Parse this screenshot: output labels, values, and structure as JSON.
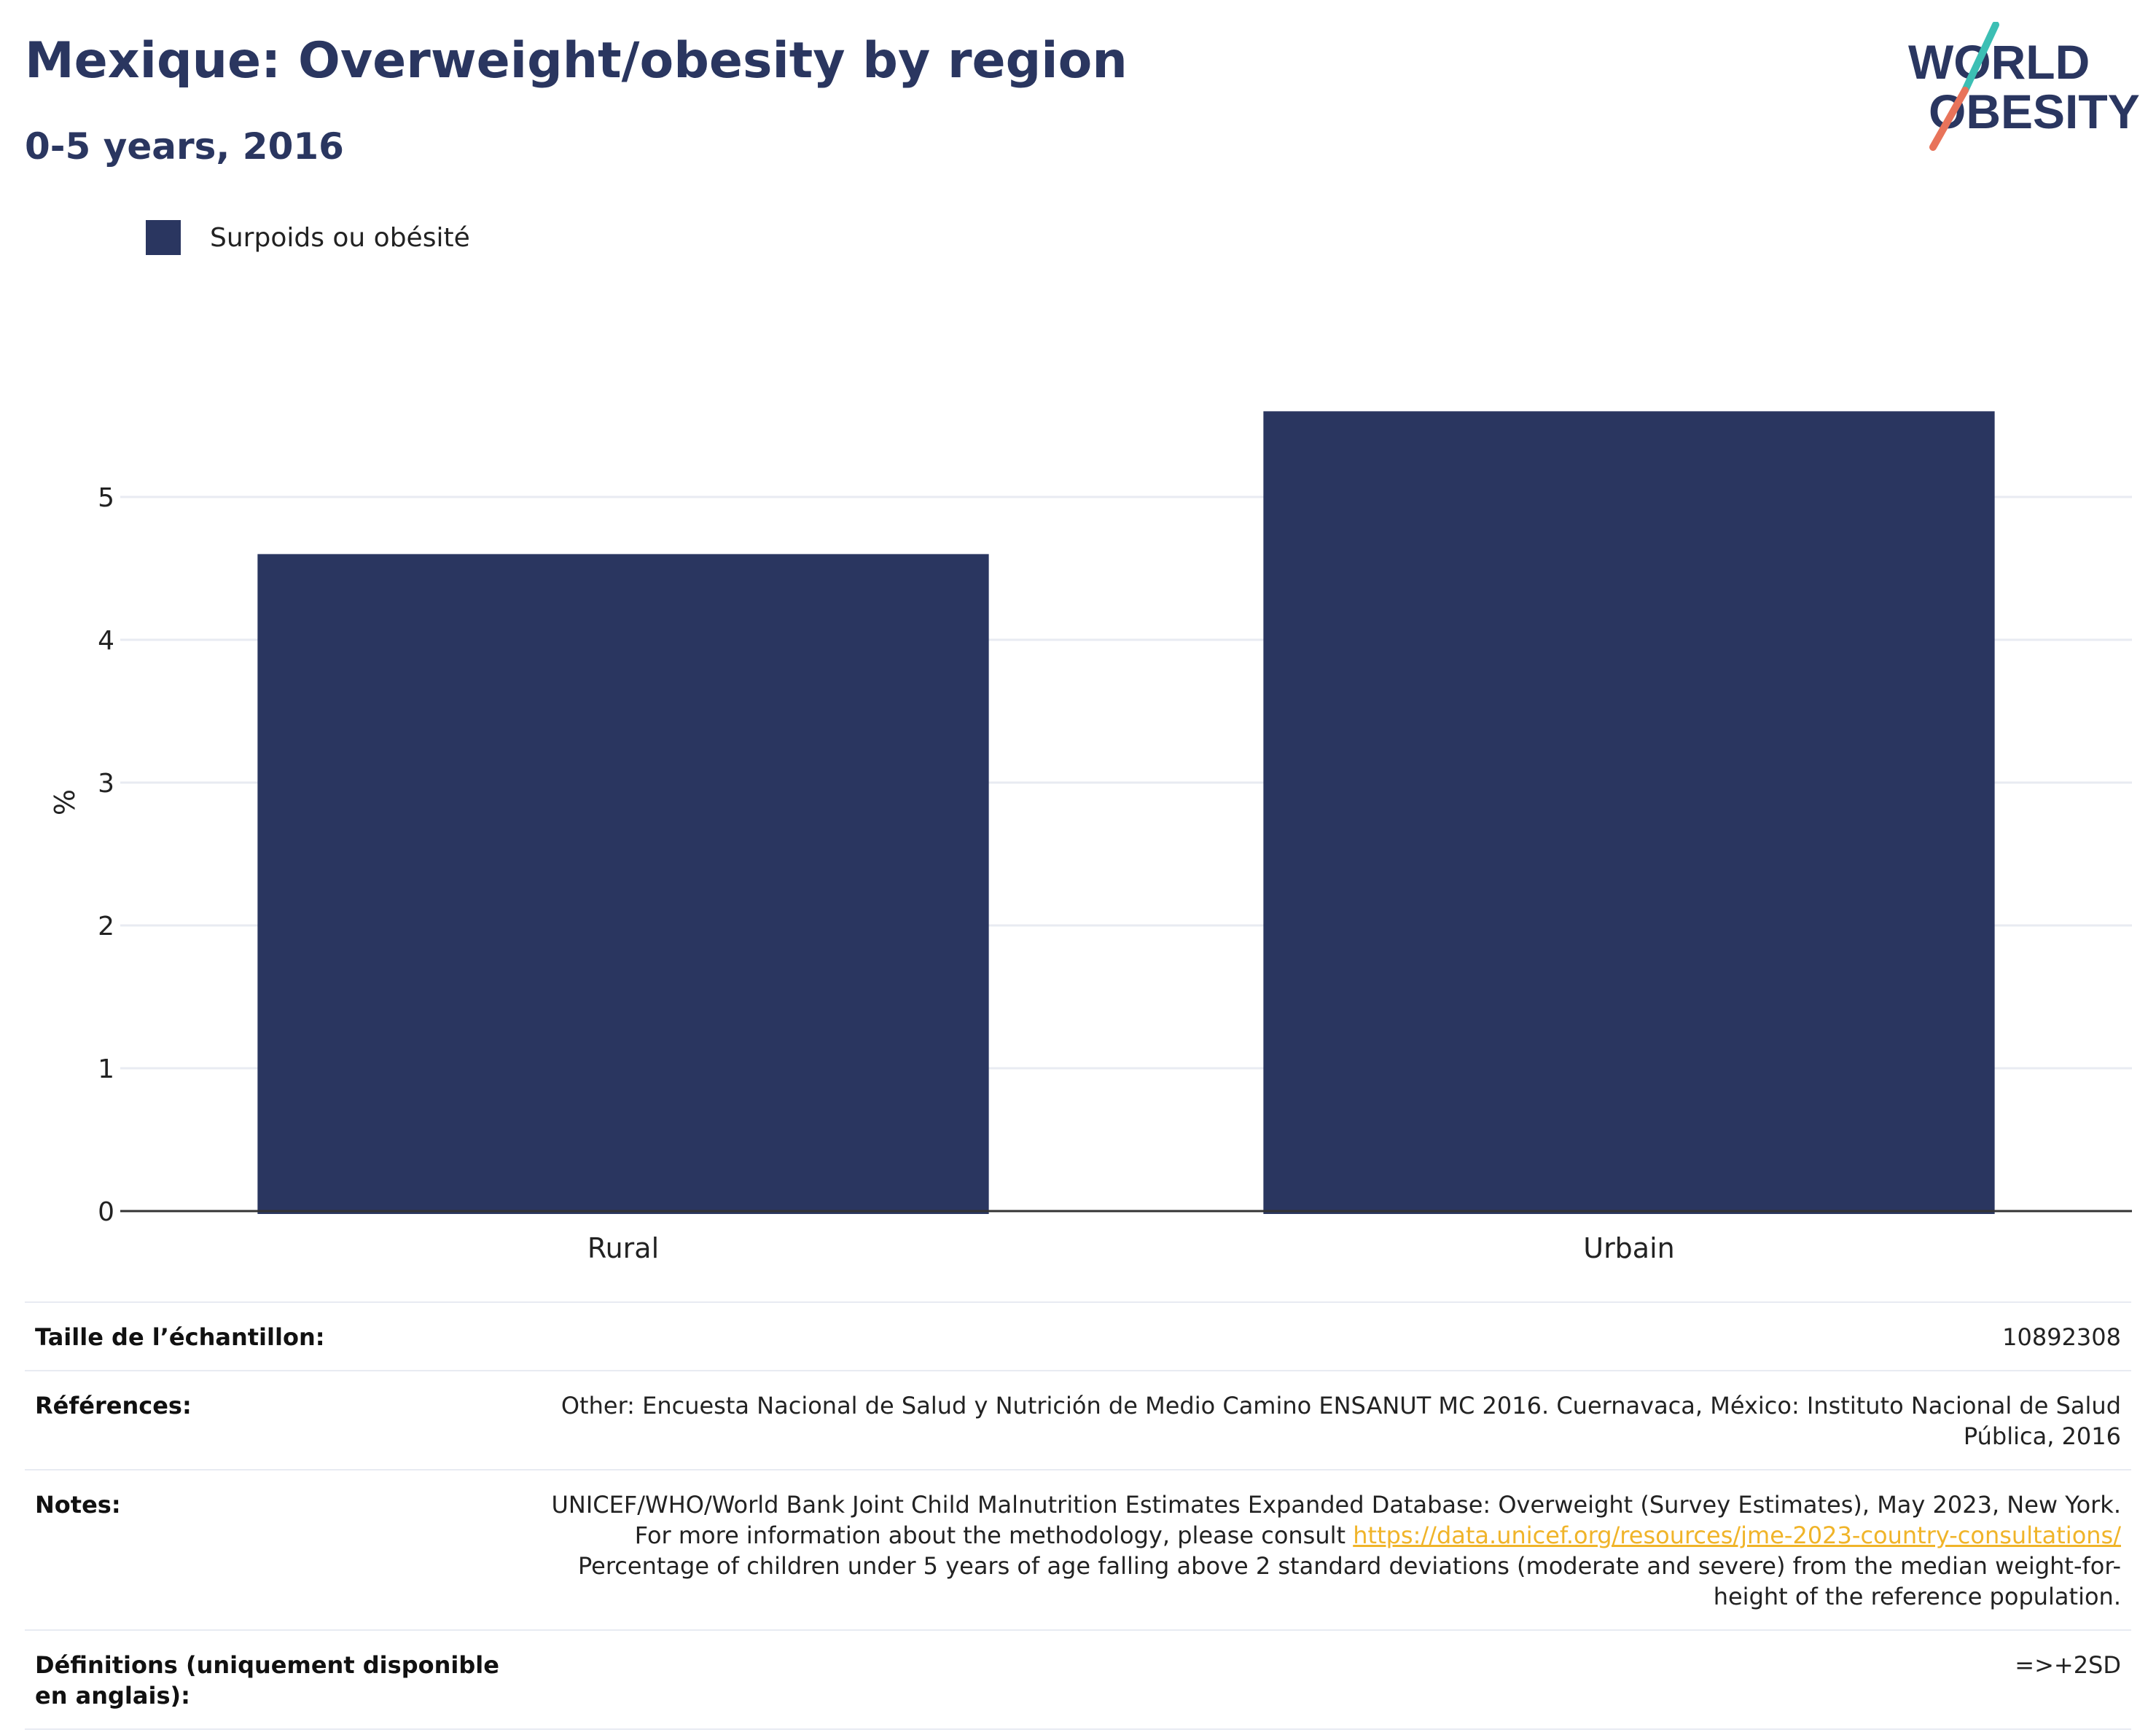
{
  "header": {
    "title": "Mexique: Overweight/obesity by region",
    "subtitle": "0-5 years, 2016"
  },
  "logo": {
    "line1": "WORLD",
    "line2": "OBESITY",
    "text_color": "#2a3660",
    "accent_teal": "#3cbfb4",
    "accent_coral": "#e8735a"
  },
  "chart_data": {
    "type": "bar",
    "categories": [
      "Rural",
      "Urbain"
    ],
    "series": [
      {
        "name": "Surpoids ou obésité",
        "values": [
          4.6,
          5.6
        ],
        "color": "#2a3660"
      }
    ],
    "ylabel": "%",
    "xlabel": "",
    "ylim": [
      0,
      6
    ],
    "yticks": [
      0,
      1,
      2,
      3,
      4,
      5
    ],
    "grid": true,
    "legend": "top-left"
  },
  "info": {
    "sample_label": "Taille de l’échantillon:",
    "sample_value": "10892308",
    "references_label": "Références:",
    "references_value": "Other: Encuesta Nacional de Salud y Nutrición de Medio Camino ENSANUT MC 2016. Cuernavaca, México: Instituto Nacional de Salud Pública, 2016",
    "notes_label": "Notes:",
    "notes_before": "UNICEF/WHO/World Bank Joint Child Malnutrition Estimates Expanded Database: Overweight (Survey Estimates), May 2023, New York. For more information about the methodology, please consult ",
    "notes_link": "https://data.unicef.org/resources/jme-2023-country-consultations/",
    "notes_after": " Percentage of children under 5 years of age falling above 2 standard deviations (moderate and severe) from the median weight-for-height of the reference population.",
    "definitions_label": "Définitions (uniquement disponible en anglais):",
    "definitions_value": "=>+2SD"
  }
}
